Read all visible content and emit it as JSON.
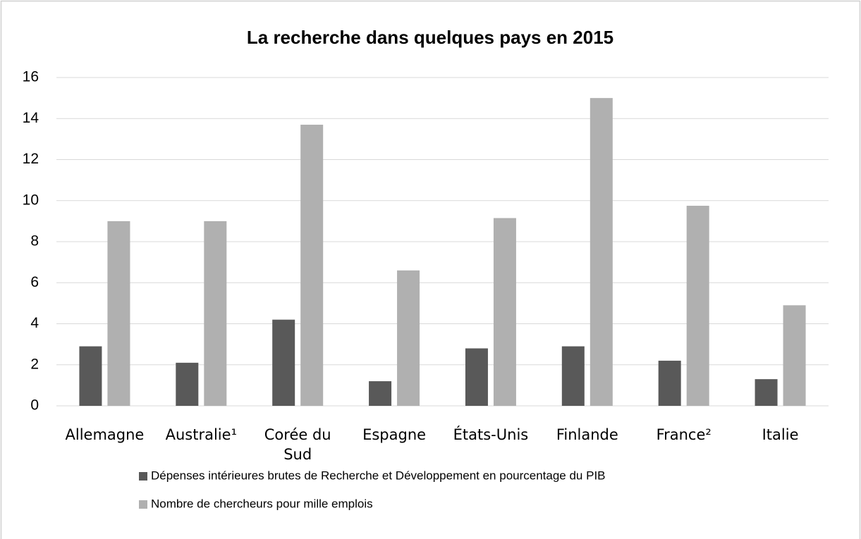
{
  "chart_data": {
    "type": "bar",
    "title": "La recherche dans quelques pays en 2015",
    "categories": [
      "Allemagne",
      "Australie¹",
      "Corée du Sud",
      "Espagne",
      "États-Unis",
      "Finlande",
      "France²",
      "Italie"
    ],
    "series": [
      {
        "name": "Dépenses intérieures brutes de Recherche et Développement en pourcentage du PIB",
        "color": "#595959",
        "values": [
          2.9,
          2.1,
          4.2,
          1.2,
          2.8,
          2.9,
          2.2,
          1.3
        ]
      },
      {
        "name": "Nombre de chercheurs pour mille emplois",
        "color": "#b0b0b0",
        "values": [
          9.0,
          9.0,
          13.7,
          6.6,
          9.15,
          15.0,
          9.75,
          4.9
        ]
      }
    ],
    "ylim": [
      0,
      16
    ],
    "yticks": [
      0,
      2,
      4,
      6,
      8,
      10,
      12,
      14,
      16
    ],
    "grid": true,
    "legend": "bottom"
  }
}
